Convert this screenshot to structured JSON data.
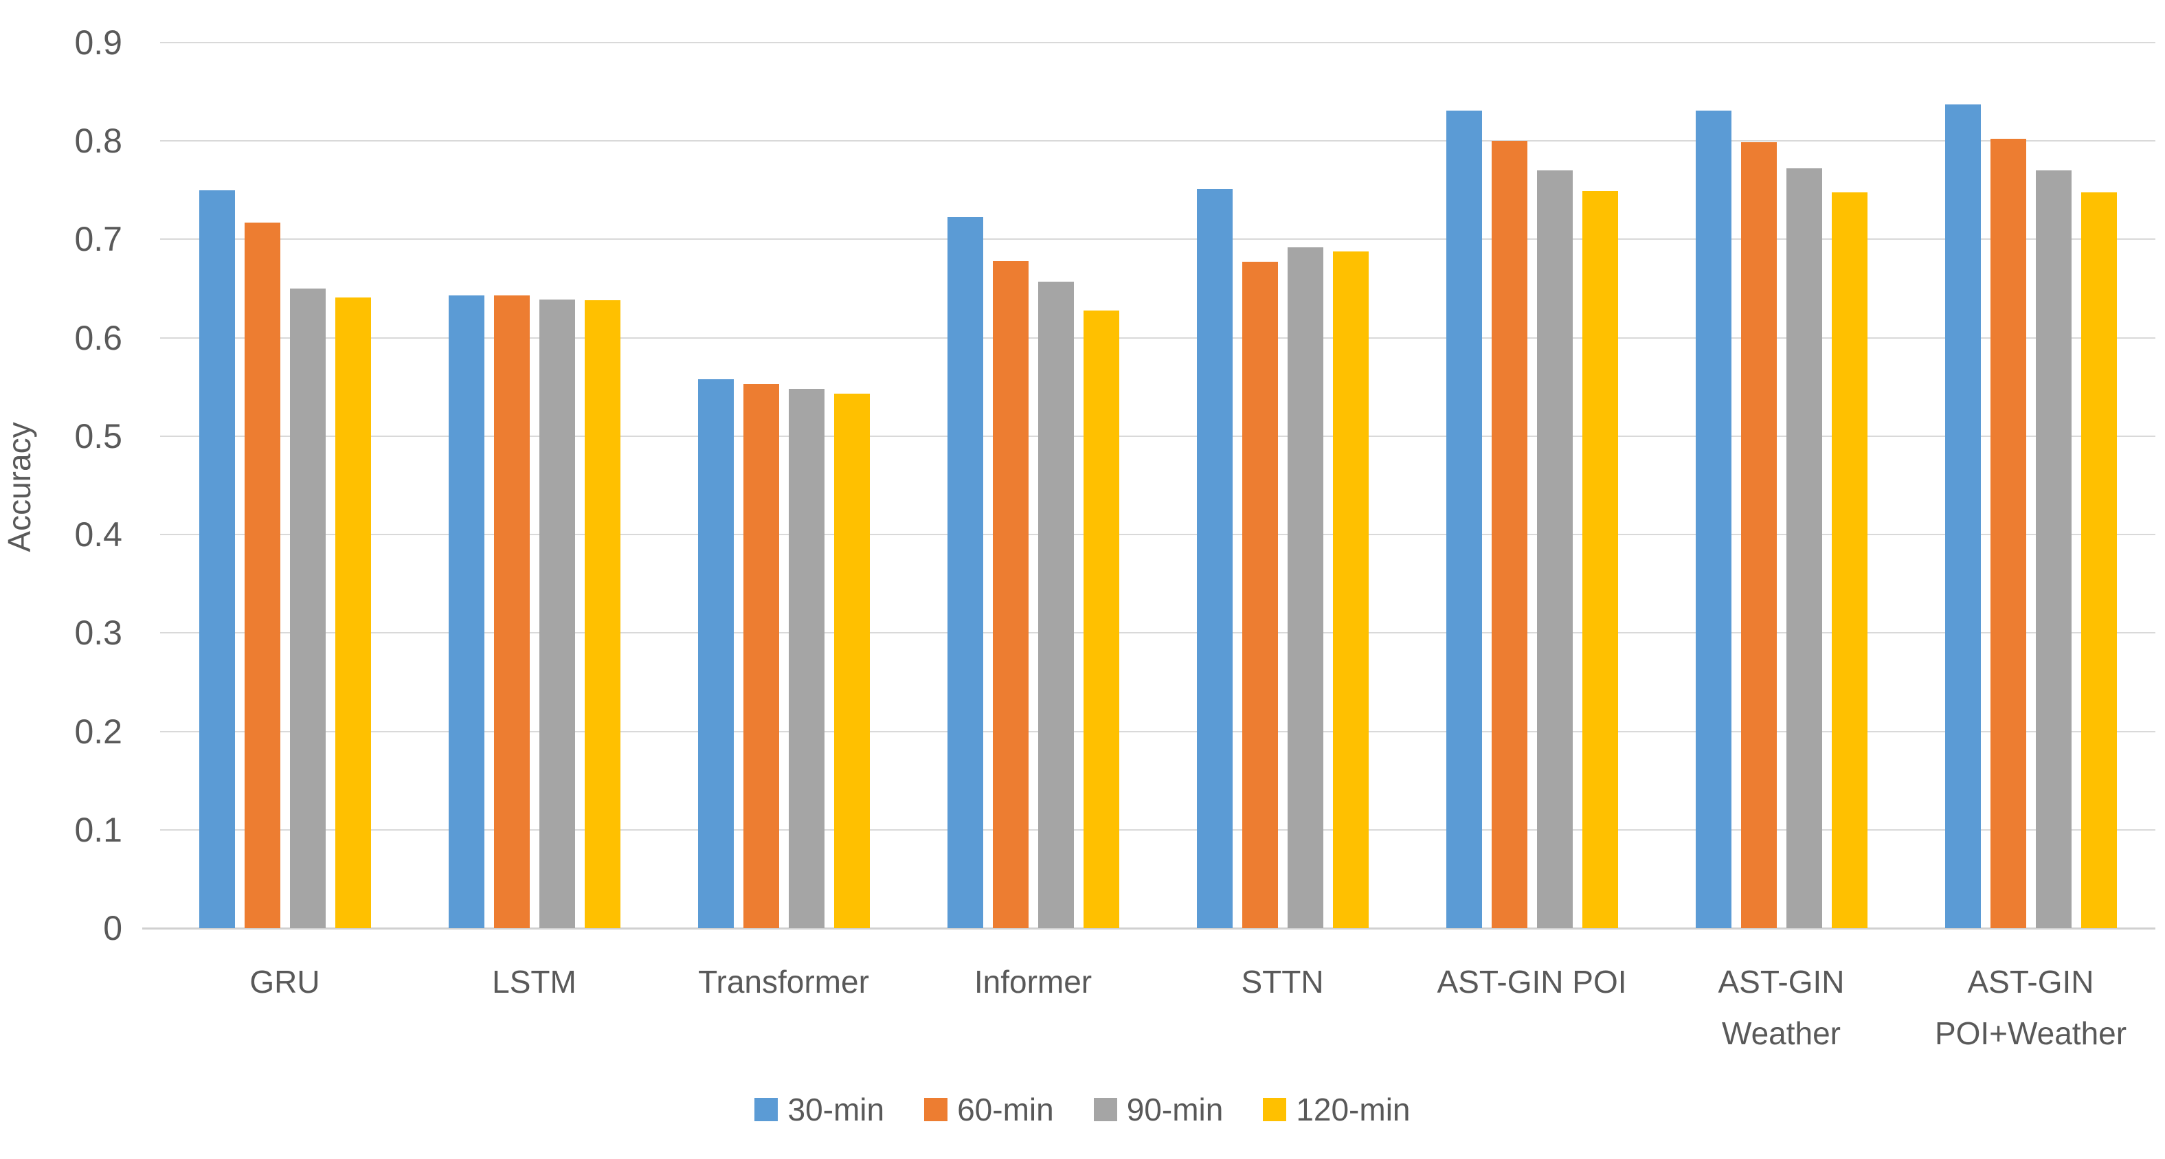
{
  "chart_data": {
    "type": "bar",
    "title": "",
    "xlabel": "",
    "ylabel": "Accuracy",
    "ylim": [
      0,
      0.9
    ],
    "ytick_step": 0.1,
    "ytick_labels": [
      "0",
      "0.1",
      "0.2",
      "0.3",
      "0.4",
      "0.5",
      "0.6",
      "0.7",
      "0.8",
      "0.9"
    ],
    "grid": true,
    "legend_position": "bottom",
    "categories": [
      "GRU",
      "LSTM",
      "Transformer",
      "Informer",
      "STTN",
      "AST-GIN POI",
      "AST-GIN\nWeather",
      "AST-GIN\nPOI+Weather"
    ],
    "series": [
      {
        "name": "30-min",
        "color": "#5B9BD5",
        "values": [
          0.75,
          0.643,
          0.558,
          0.723,
          0.751,
          0.831,
          0.831,
          0.837
        ]
      },
      {
        "name": "60-min",
        "color": "#ED7D31",
        "values": [
          0.717,
          0.643,
          0.553,
          0.678,
          0.677,
          0.8,
          0.799,
          0.802
        ]
      },
      {
        "name": "90-min",
        "color": "#A5A5A5",
        "values": [
          0.65,
          0.639,
          0.548,
          0.657,
          0.692,
          0.77,
          0.772,
          0.77
        ]
      },
      {
        "name": "120-min",
        "color": "#FFC000",
        "values": [
          0.641,
          0.638,
          0.543,
          0.628,
          0.688,
          0.749,
          0.748,
          0.748
        ]
      }
    ]
  },
  "colors": {
    "gridline": "#D9D9D9",
    "axis_text": "#595959",
    "background": "#FFFFFF"
  }
}
